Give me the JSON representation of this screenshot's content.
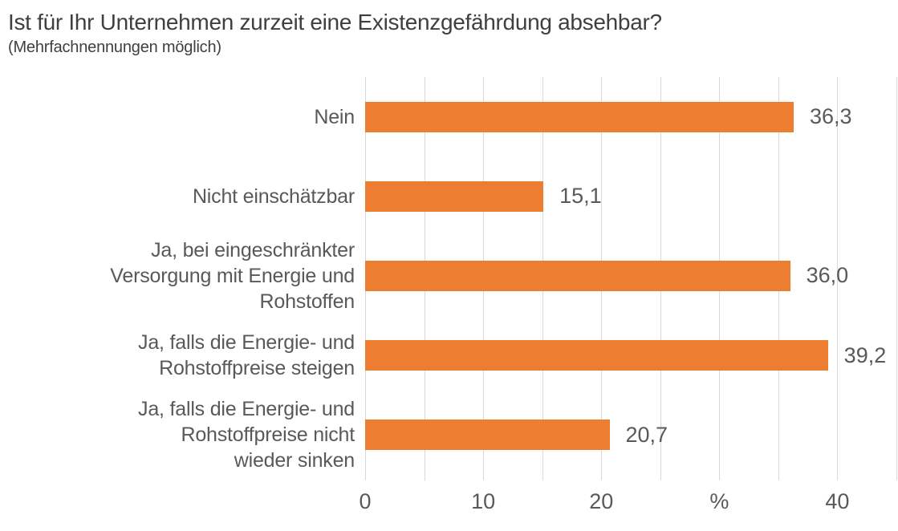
{
  "title": "Ist für Ihr Unternehmen zurzeit eine Existenzgefährdung absehbar?",
  "subtitle": "(Mehrfachnennungen möglich)",
  "chart_data": {
    "type": "bar",
    "orientation": "horizontal",
    "title": "Ist für Ihr Unternehmen zurzeit eine Existenzgefährdung absehbar?",
    "subtitle": "(Mehrfachnennungen möglich)",
    "categories": [
      "Nein",
      "Nicht einschätzbar",
      "Ja, bei eingeschränkter Versorgung mit Energie und Rohstoffen",
      "Ja, falls die Energie- und Rohstoffpreise steigen",
      "Ja, falls die Energie- und Rohstoffpreise nicht wieder sinken"
    ],
    "category_display": [
      "Nein",
      "Nicht einschätzbar",
      "Ja, bei eingeschränkter\nVersorgung mit Energie und\nRohstoffen",
      "Ja, falls die Energie- und\nRohstoffpreise steigen",
      "Ja, falls die Energie- und\nRohstoffpreise nicht\nwieder sinken"
    ],
    "values": [
      36.3,
      15.1,
      36.0,
      39.2,
      20.7
    ],
    "value_labels": [
      "36,3",
      "15,1",
      "36,0",
      "39,2",
      "20,7"
    ],
    "xlabel": "%",
    "ylabel": "",
    "xlim": [
      0,
      45
    ],
    "gridline_interval": 5,
    "grid": "vertical",
    "legend": "none",
    "x_ticks": [
      {
        "value": 0,
        "label": "0"
      },
      {
        "value": 10,
        "label": "10"
      },
      {
        "value": 20,
        "label": "20"
      },
      {
        "value": 30,
        "label": "%"
      },
      {
        "value": 40,
        "label": "40"
      }
    ],
    "bar_color": "#ED7D31",
    "gridline_color": "#D9D9D9",
    "label_color": "#595959",
    "title_color": "#3F3F3F"
  }
}
